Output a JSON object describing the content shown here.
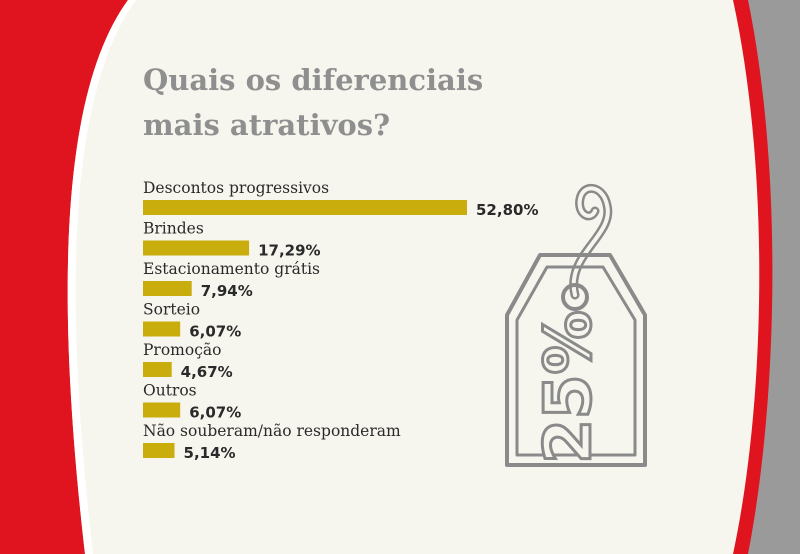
{
  "colors": {
    "background": "#f7f6ee",
    "red": "#e0141e",
    "gray": "#9a9a9a",
    "bar": "#c9ad0c",
    "title": "#8f8f8f"
  },
  "title": {
    "line1": "Quais os diferenciais",
    "line2": "mais atrativos?"
  },
  "chart_data": {
    "type": "bar",
    "orientation": "horizontal",
    "categories": [
      "Descontos progressivos",
      "Brindes",
      "Estacionamento grátis",
      "Sorteio",
      "Promoção",
      "Outros",
      "Não souberam/não responderam"
    ],
    "values": [
      52.8,
      17.29,
      7.94,
      6.07,
      4.67,
      6.07,
      5.14
    ],
    "value_labels": [
      "52,80%",
      "17,29%",
      "7,94%",
      "6,07%",
      "4,67%",
      "6,07%",
      "5,14%"
    ],
    "unit": "%",
    "grid": false,
    "legend": "none"
  },
  "illustration": {
    "icon": "price-tag-icon",
    "text": "25%"
  }
}
